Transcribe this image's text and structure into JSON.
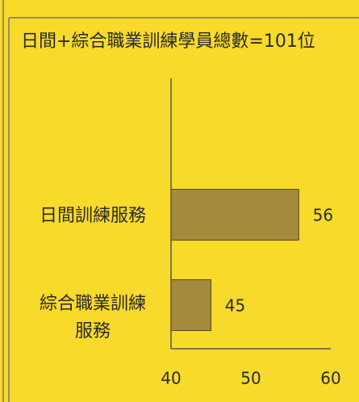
{
  "chart_data": {
    "type": "bar",
    "orientation": "horizontal",
    "title": "日間+綜合職業訓練學員總數=101位",
    "categories": [
      "日間訓練服務",
      "綜合職業訓練服務"
    ],
    "values": [
      56,
      45
    ],
    "color": "#a48a3c",
    "xlim": [
      40,
      60
    ],
    "xticks": [
      40,
      50,
      60
    ],
    "grid": false
  }
}
